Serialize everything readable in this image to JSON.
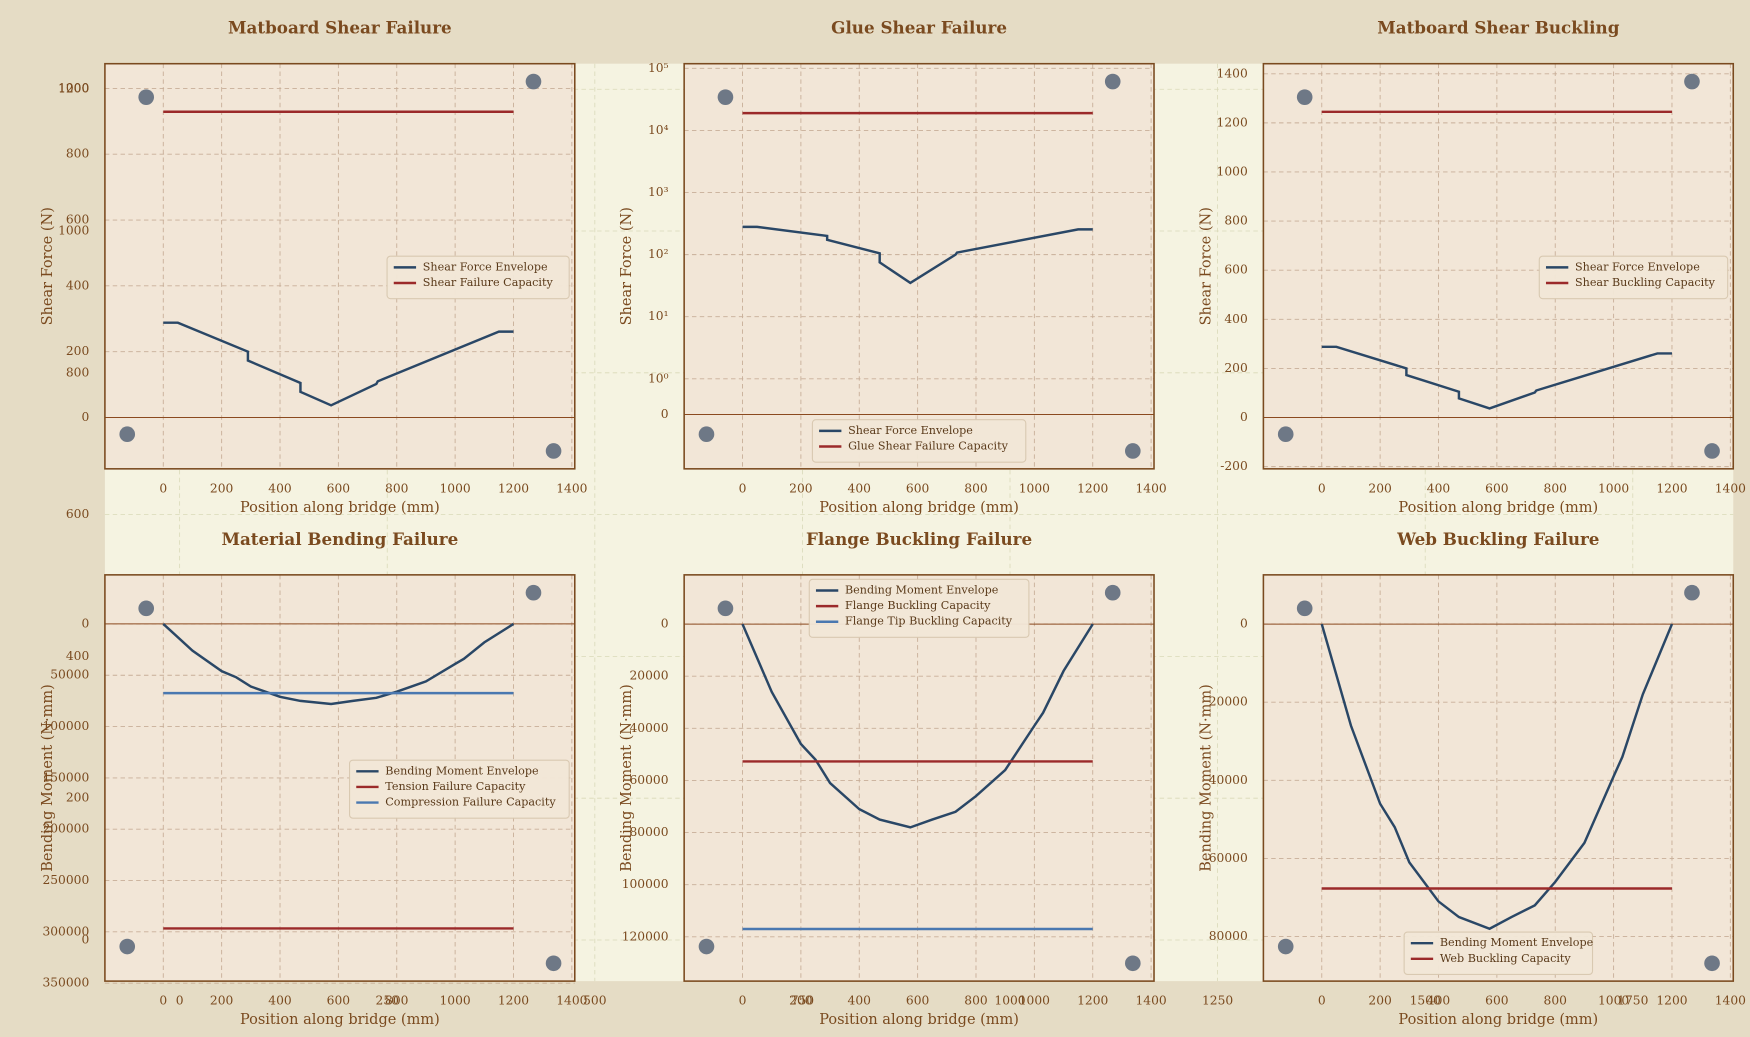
{
  "chart_data": [
    {
      "type": "axes",
      "xlim": [
        -90,
        1871
      ],
      "ylim": [
        -58,
        1236
      ],
      "xticks": [
        0,
        250,
        500,
        750,
        1000,
        1250,
        1500,
        1750
      ],
      "yticks": [
        0,
        200,
        400,
        600,
        800,
        1000,
        1200
      ],
      "grid": true
    },
    {
      "type": "line",
      "title": "Matboard Shear Failure",
      "xlabel": "Position along bridge (mm)",
      "ylabel": "Shear Force (N)",
      "xlim": [
        -200,
        1410
      ],
      "ylim": [
        -156,
        1075
      ],
      "xticks": [
        0,
        200,
        400,
        600,
        800,
        1000,
        1200,
        1400
      ],
      "yticks": [
        0,
        200,
        400,
        600,
        800,
        1000
      ],
      "grid": true,
      "reference_line": 0,
      "legend": "center right",
      "series": [
        {
          "name": "Shear Force Envelope",
          "color": "#2a4766",
          "x": [
            0,
            50,
            290,
            290,
            470,
            470,
            575,
            730,
            735,
            1150,
            1200
          ],
          "values": [
            288,
            288,
            200,
            173,
            105,
            78,
            37,
            102,
            110,
            261,
            261
          ]
        },
        {
          "name": "Shear Failure Capacity",
          "color": "#9b2a2a",
          "x": [
            0,
            1200
          ],
          "values": [
            929,
            929
          ]
        }
      ]
    },
    {
      "type": "line",
      "title": "Glue Shear Failure",
      "xlabel": "Position along bridge (mm)",
      "ylabel": "Shear Force (N)",
      "xlim": [
        -200,
        1410
      ],
      "ylim": [
        -2,
        118600
      ],
      "yscale": "symlog",
      "xticks": [
        0,
        200,
        400,
        600,
        800,
        1000,
        1200,
        1400
      ],
      "yticks": [
        0,
        {
          "value": 1,
          "label": "10⁰"
        },
        {
          "value": 10,
          "label": "10¹"
        },
        {
          "value": 100,
          "label": "10²"
        },
        {
          "value": 1000,
          "label": "10³"
        },
        {
          "value": 10000,
          "label": "10⁴"
        },
        {
          "value": 100000,
          "label": "10⁵"
        }
      ],
      "grid": true,
      "reference_line": 0,
      "legend": "lower center",
      "series": [
        {
          "name": "Shear Force Envelope",
          "color": "#2a4766",
          "x": [
            0,
            50,
            290,
            290,
            470,
            470,
            575,
            730,
            735,
            1150,
            1200
          ],
          "values": [
            280,
            280,
            200,
            173,
            105,
            75,
            35,
            100,
            108,
            255,
            255
          ]
        },
        {
          "name": "Glue Shear Failure Capacity",
          "color": "#9b2a2a",
          "x": [
            0,
            1200
          ],
          "values": [
            19000,
            19000
          ]
        }
      ]
    },
    {
      "type": "line",
      "title": "Matboard Shear Buckling",
      "xlabel": "Position along bridge (mm)",
      "ylabel": "Shear Force (N)",
      "xlim": [
        -200,
        1410
      ],
      "ylim": [
        -209,
        1441
      ],
      "xticks": [
        0,
        200,
        400,
        600,
        800,
        1000,
        1200,
        1400
      ],
      "yticks": [
        -200,
        0,
        200,
        400,
        600,
        800,
        1000,
        1200,
        1400
      ],
      "grid": true,
      "reference_line": 0,
      "legend": "center right",
      "series": [
        {
          "name": "Shear Force Envelope",
          "color": "#2a4766",
          "x": [
            0,
            50,
            290,
            290,
            470,
            470,
            575,
            730,
            735,
            1150,
            1200
          ],
          "values": [
            288,
            288,
            200,
            173,
            105,
            78,
            37,
            102,
            110,
            261,
            261
          ]
        },
        {
          "name": "Shear Buckling Capacity",
          "color": "#9b2a2a",
          "x": [
            0,
            1200
          ],
          "values": [
            1245,
            1245
          ]
        }
      ]
    },
    {
      "type": "line",
      "title": "Material Bending Failure",
      "xlabel": "Position along bridge (mm)",
      "ylabel": "Bending Moment (N·mm)",
      "xlim": [
        -200,
        1410
      ],
      "ylim": [
        348000,
        -47800
      ],
      "xticks": [
        0,
        200,
        400,
        600,
        800,
        1000,
        1200,
        1400
      ],
      "yticks": [
        0,
        50000,
        100000,
        150000,
        200000,
        250000,
        300000,
        350000
      ],
      "grid": true,
      "reference_line": 0,
      "legend": "center right",
      "series": [
        {
          "name": "Bending Moment Envelope",
          "color": "#2a4766",
          "x": [
            0,
            100,
            200,
            250,
            300,
            400,
            470,
            575,
            650,
            730,
            800,
            850,
            900,
            1000,
            1030,
            1100,
            1200
          ],
          "values": [
            0,
            26000,
            46000,
            52000,
            61000,
            71000,
            75000,
            78000,
            75000,
            72000,
            66000,
            61000,
            56000,
            39000,
            34000,
            18000,
            0
          ]
        },
        {
          "name": "Tension Failure Capacity",
          "color": "#9b2a2a",
          "x": [
            0,
            1200
          ],
          "values": [
            296700,
            296700
          ]
        },
        {
          "name": "Compression Failure Capacity",
          "color": "#4a78b0",
          "x": [
            0,
            1200
          ],
          "values": [
            67400,
            67400
          ]
        }
      ]
    },
    {
      "type": "line",
      "title": "Flange Buckling Failure",
      "xlabel": "Position along bridge (mm)",
      "ylabel": "Bending Moment (N·mm)",
      "xlim": [
        -200,
        1410
      ],
      "ylim": [
        137000,
        -18900
      ],
      "xticks": [
        0,
        200,
        400,
        600,
        800,
        1000,
        1200,
        1400
      ],
      "yticks": [
        0,
        20000,
        40000,
        60000,
        80000,
        100000,
        120000
      ],
      "grid": true,
      "reference_line": 0,
      "legend": "upper center",
      "series": [
        {
          "name": "Bending Moment Envelope",
          "color": "#2a4766",
          "x": [
            0,
            100,
            200,
            250,
            300,
            400,
            470,
            575,
            650,
            730,
            800,
            850,
            900,
            1000,
            1030,
            1100,
            1200
          ],
          "values": [
            0,
            26000,
            46000,
            52000,
            61000,
            71000,
            75000,
            78000,
            75000,
            72000,
            66000,
            61000,
            56000,
            39000,
            34000,
            18000,
            0
          ]
        },
        {
          "name": "Flange Buckling Capacity",
          "color": "#9b2a2a",
          "x": [
            0,
            1200
          ],
          "values": [
            52700,
            52700
          ]
        },
        {
          "name": "Flange Tip Buckling Capacity",
          "color": "#4a78b0",
          "x": [
            0,
            1200
          ],
          "values": [
            117000,
            117000
          ]
        }
      ]
    },
    {
      "type": "line",
      "title": "Web Buckling Failure",
      "xlabel": "Position along bridge (mm)",
      "ylabel": "Bending Moment (N·mm)",
      "xlim": [
        -200,
        1410
      ],
      "ylim": [
        91400,
        -12600
      ],
      "xticks": [
        0,
        200,
        400,
        600,
        800,
        1000,
        1200,
        1400
      ],
      "yticks": [
        0,
        20000,
        40000,
        60000,
        80000
      ],
      "grid": true,
      "reference_line": 0,
      "legend": "lower center",
      "series": [
        {
          "name": "Bending Moment Envelope",
          "color": "#2a4766",
          "x": [
            0,
            100,
            200,
            250,
            300,
            400,
            470,
            575,
            650,
            730,
            800,
            850,
            900,
            1000,
            1030,
            1100,
            1200
          ],
          "values": [
            0,
            26000,
            46000,
            52000,
            61000,
            71000,
            75000,
            78000,
            75000,
            72000,
            66000,
            61000,
            56000,
            39000,
            34000,
            18000,
            0
          ]
        },
        {
          "name": "Web Buckling Capacity",
          "color": "#9b2a2a",
          "x": [
            0,
            1200
          ],
          "values": [
            67700,
            67700
          ]
        }
      ]
    }
  ]
}
